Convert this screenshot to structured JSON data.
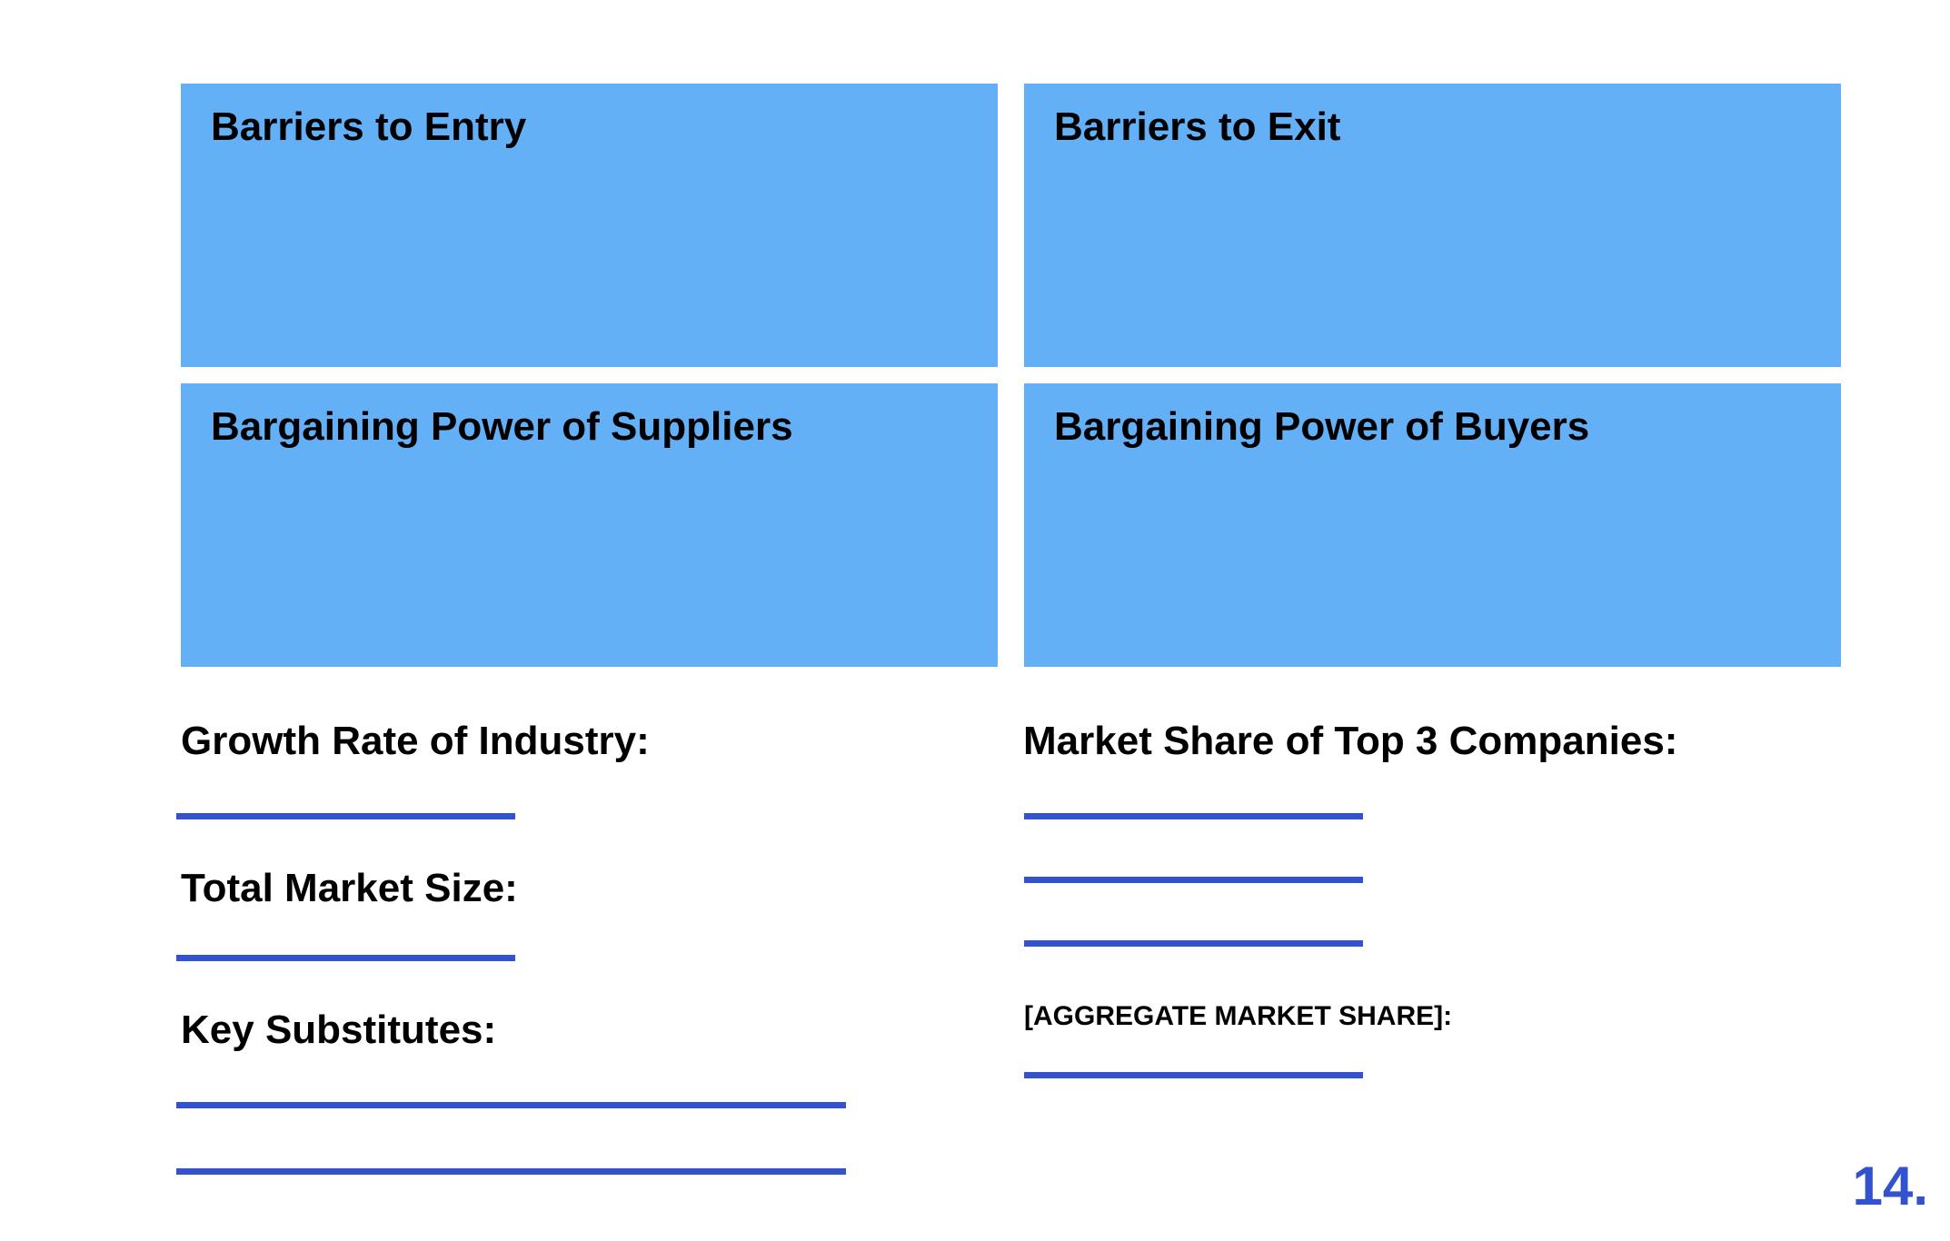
{
  "boxes": {
    "barriers_entry": "Barriers to Entry",
    "barriers_exit": "Barriers to Exit",
    "power_suppliers": "Bargaining Power of Suppliers",
    "power_buyers": "Bargaining Power of Buyers"
  },
  "fields": {
    "growth_rate": "Growth Rate of Industry:",
    "market_size": "Total Market Size:",
    "key_substitutes": "Key Substitutes:",
    "market_share_top3": "Market Share of Top 3 Companies:",
    "aggregate_share": "[AGGREGATE MARKET SHARE]:"
  },
  "page_number": "14.",
  "colors": {
    "box_fill": "#64b0f6",
    "line_accent": "#3352d0",
    "text": "#000000"
  }
}
